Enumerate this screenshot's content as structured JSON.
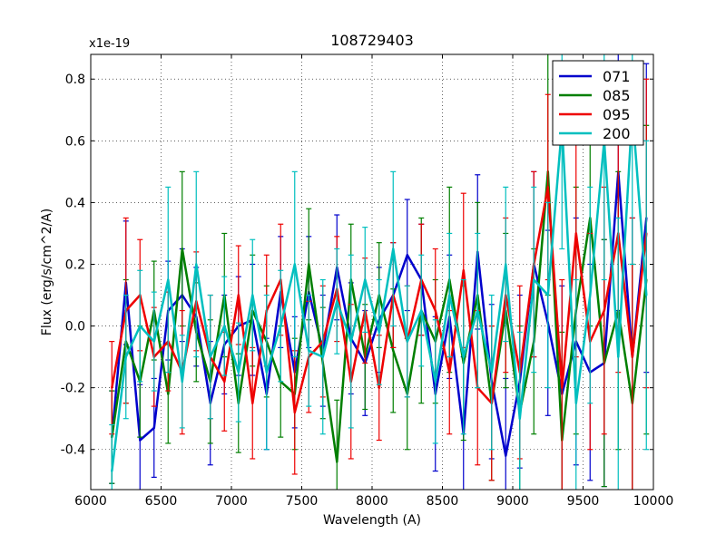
{
  "chart_data": {
    "type": "line",
    "title": "108729403",
    "xlabel": "Wavelength (A)",
    "ylabel": "Flux (erg/s/cm^2/A)",
    "y_scale_label": "x1e-19",
    "xlim": [
      6000,
      10000
    ],
    "ylim": [
      -0.53,
      0.88
    ],
    "x_ticks": [
      6000,
      6500,
      7000,
      7500,
      8000,
      8500,
      9000,
      9500,
      10000
    ],
    "y_ticks": [
      -0.4,
      -0.2,
      0.0,
      0.2,
      0.4,
      0.6,
      0.8
    ],
    "y_tick_labels": [
      "-0.4",
      "-0.2",
      "0.0",
      "0.2",
      "0.4",
      "0.6",
      "0.8"
    ],
    "grid": true,
    "legend_position": "top-right",
    "series": [
      {
        "name": "071",
        "color": "#0000cc",
        "x": [
          6150,
          6250,
          6350,
          6450,
          6550,
          6650,
          6750,
          6850,
          6950,
          7050,
          7150,
          7250,
          7350,
          7450,
          7550,
          7650,
          7750,
          7850,
          7950,
          8050,
          8150,
          8250,
          8350,
          8450,
          8550,
          8650,
          8750,
          8850,
          8950,
          9050,
          9150,
          9250,
          9350,
          9450,
          9550,
          9650,
          9750,
          9850,
          9950
        ],
        "y": [
          -0.36,
          0.14,
          -0.37,
          -0.33,
          0.05,
          0.1,
          0.03,
          -0.25,
          -0.06,
          0.0,
          0.02,
          -0.22,
          0.11,
          -0.15,
          0.11,
          -0.08,
          0.19,
          -0.04,
          -0.12,
          0.02,
          0.1,
          0.23,
          0.15,
          -0.22,
          0.03,
          -0.35,
          0.24,
          -0.18,
          -0.42,
          -0.18,
          0.2,
          0.01,
          -0.22,
          -0.05,
          -0.15,
          -0.12,
          0.5,
          -0.1,
          0.35
        ],
        "err": [
          0.15,
          0.2,
          0.18,
          0.16,
          0.16,
          0.15,
          0.16,
          0.2,
          0.16,
          0.16,
          0.18,
          0.18,
          0.18,
          0.18,
          0.18,
          0.18,
          0.17,
          0.18,
          0.17,
          0.17,
          0.17,
          0.18,
          0.18,
          0.25,
          0.2,
          0.25,
          0.25,
          0.25,
          0.25,
          0.28,
          0.3,
          0.3,
          0.35,
          0.4,
          0.35,
          0.4,
          0.45,
          0.45,
          0.5
        ]
      },
      {
        "name": "085",
        "color": "#007f00",
        "x": [
          6150,
          6250,
          6350,
          6450,
          6550,
          6650,
          6750,
          6850,
          6950,
          7050,
          7150,
          7250,
          7350,
          7450,
          7550,
          7650,
          7750,
          7850,
          7950,
          8050,
          8150,
          8250,
          8350,
          8450,
          8550,
          8650,
          8750,
          8850,
          8950,
          9050,
          9150,
          9250,
          9350,
          9450,
          9550,
          9650,
          9750,
          9850,
          9950
        ],
        "y": [
          -0.36,
          -0.05,
          -0.18,
          0.05,
          -0.22,
          0.25,
          -0.02,
          -0.18,
          0.1,
          -0.25,
          0.05,
          -0.05,
          -0.18,
          -0.22,
          0.2,
          -0.12,
          -0.44,
          0.15,
          -0.1,
          0.1,
          -0.08,
          -0.22,
          0.05,
          -0.05,
          0.15,
          -0.12,
          0.1,
          -0.25,
          0.05,
          -0.28,
          -0.05,
          0.5,
          -0.37,
          0.05,
          0.35,
          -0.12,
          0.05,
          -0.25,
          0.15
        ],
        "err": [
          0.15,
          0.2,
          0.18,
          0.16,
          0.16,
          0.25,
          0.16,
          0.2,
          0.2,
          0.16,
          0.18,
          0.18,
          0.18,
          0.18,
          0.18,
          0.18,
          0.2,
          0.18,
          0.17,
          0.17,
          0.2,
          0.18,
          0.3,
          0.2,
          0.3,
          0.25,
          0.3,
          0.25,
          0.25,
          0.28,
          0.3,
          0.4,
          0.35,
          0.4,
          0.35,
          0.4,
          0.45,
          0.45,
          0.5
        ]
      },
      {
        "name": "095",
        "color": "#ee0000",
        "x": [
          6150,
          6250,
          6350,
          6450,
          6550,
          6650,
          6750,
          6850,
          6950,
          7050,
          7150,
          7250,
          7350,
          7450,
          7550,
          7650,
          7750,
          7850,
          7950,
          8050,
          8150,
          8250,
          8350,
          8450,
          8550,
          8650,
          8750,
          8850,
          8950,
          9050,
          9150,
          9250,
          9350,
          9450,
          9550,
          9650,
          9750,
          9850,
          9950
        ],
        "y": [
          -0.2,
          0.05,
          0.1,
          -0.1,
          -0.05,
          -0.15,
          0.08,
          -0.1,
          -0.18,
          0.1,
          -0.25,
          0.05,
          0.15,
          -0.28,
          -0.1,
          -0.05,
          0.12,
          -0.18,
          0.05,
          -0.2,
          0.1,
          -0.05,
          0.15,
          0.05,
          -0.15,
          0.18,
          -0.2,
          -0.25,
          0.1,
          -0.15,
          0.2,
          0.45,
          -0.2,
          0.3,
          -0.05,
          0.05,
          0.3,
          -0.1,
          0.3
        ],
        "err": [
          0.15,
          0.3,
          0.18,
          0.16,
          0.16,
          0.2,
          0.16,
          0.2,
          0.16,
          0.16,
          0.18,
          0.18,
          0.18,
          0.2,
          0.18,
          0.18,
          0.17,
          0.25,
          0.17,
          0.17,
          0.17,
          0.18,
          0.18,
          0.2,
          0.2,
          0.25,
          0.25,
          0.25,
          0.25,
          0.28,
          0.3,
          0.3,
          0.35,
          0.4,
          0.35,
          0.4,
          0.45,
          0.45,
          0.5
        ]
      },
      {
        "name": "200",
        "color": "#00bfbf",
        "x": [
          6150,
          6250,
          6350,
          6450,
          6550,
          6650,
          6750,
          6850,
          6950,
          7050,
          7150,
          7250,
          7350,
          7450,
          7550,
          7650,
          7750,
          7850,
          7950,
          8050,
          8150,
          8250,
          8350,
          8450,
          8550,
          8650,
          8750,
          8850,
          8950,
          9050,
          9150,
          9250,
          9350,
          9450,
          9550,
          9650,
          9750,
          9850,
          9950
        ],
        "y": [
          -0.47,
          -0.1,
          0.0,
          -0.05,
          0.15,
          -0.18,
          0.2,
          -0.1,
          0.0,
          -0.15,
          0.1,
          -0.15,
          0.0,
          0.2,
          -0.08,
          -0.1,
          0.08,
          -0.05,
          0.15,
          -0.02,
          0.25,
          -0.05,
          0.05,
          -0.18,
          0.1,
          -0.1,
          0.05,
          -0.15,
          0.2,
          -0.3,
          0.15,
          0.1,
          0.65,
          -0.25,
          0.1,
          0.6,
          -0.1,
          0.7,
          0.1
        ],
        "err": [
          0.15,
          0.2,
          0.18,
          0.16,
          0.3,
          0.15,
          0.3,
          0.2,
          0.16,
          0.16,
          0.18,
          0.25,
          0.18,
          0.3,
          0.18,
          0.25,
          0.17,
          0.28,
          0.17,
          0.17,
          0.25,
          0.18,
          0.18,
          0.2,
          0.2,
          0.25,
          0.25,
          0.25,
          0.25,
          0.28,
          0.3,
          0.3,
          0.4,
          0.4,
          0.35,
          0.45,
          0.45,
          0.5,
          0.5
        ]
      }
    ]
  }
}
